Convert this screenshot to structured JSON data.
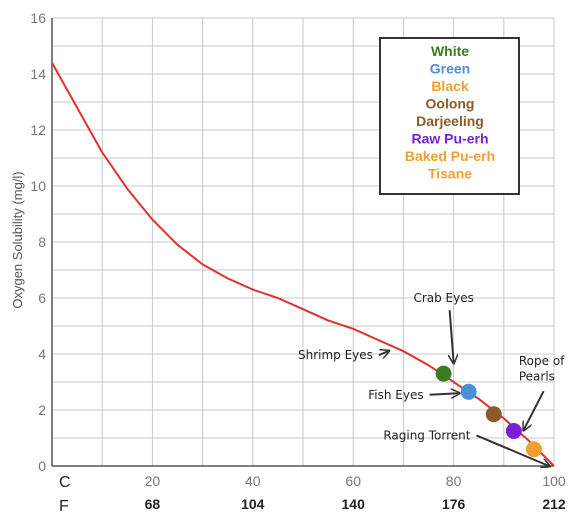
{
  "chart_data": {
    "type": "line",
    "ylabel": "Oxygen Solubility (mg/l)",
    "ylim": [
      0,
      16
    ],
    "xlim": [
      0,
      100
    ],
    "y_ticks": [
      0,
      2,
      4,
      6,
      8,
      10,
      12,
      14,
      16
    ],
    "x_ticks": [
      20,
      40,
      60,
      80,
      100
    ],
    "x_scale_label_c": "C",
    "x_scale_label_f": "F",
    "x_ticks_f": [
      {
        "c": 20,
        "label": "68"
      },
      {
        "c": 40,
        "label": "104"
      },
      {
        "c": 60,
        "label": "140"
      },
      {
        "c": 80,
        "label": "176"
      },
      {
        "c": 100,
        "label": "212"
      }
    ],
    "series": [
      {
        "color": "#e03030",
        "x": [
          0,
          5,
          10,
          15,
          20,
          25,
          30,
          35,
          40,
          45,
          50,
          55,
          60,
          65,
          70,
          75,
          80,
          85,
          90,
          95,
          100
        ],
        "y": [
          14.4,
          12.8,
          11.2,
          9.9,
          8.8,
          7.9,
          7.2,
          6.7,
          6.3,
          6.0,
          5.6,
          5.2,
          4.9,
          4.5,
          4.1,
          3.6,
          3.0,
          2.4,
          1.7,
          0.9,
          0.0
        ]
      }
    ],
    "points": [
      {
        "name": "White",
        "color": "#3a7d1e",
        "x": 78,
        "y": 3.3
      },
      {
        "name": "Green",
        "color": "#4a90d9",
        "x": 83,
        "y": 2.65
      },
      {
        "name": "Oolong",
        "color": "#8b5a2b",
        "x": 88,
        "y": 1.85
      },
      {
        "name": "Raw Pu-erh",
        "color": "#7a1fd6",
        "x": 92,
        "y": 1.25
      },
      {
        "name": "Baked Pu-erh",
        "color": "#f0a030",
        "x": 96,
        "y": 0.6
      }
    ],
    "annotations": [
      {
        "label": "Crab Eyes",
        "tx": 72,
        "ty": 5.85,
        "ax": 80,
        "ay": 3.7
      },
      {
        "label": "Shrimp Eyes",
        "tx": 49,
        "ty": 3.82,
        "ax": 67,
        "ay": 4.1
      },
      {
        "label": "Fish Eyes",
        "tx": 63,
        "ty": 2.4,
        "ax": 81,
        "ay": 2.6
      },
      {
        "label": "Rope of",
        "tx": 93,
        "ty": 3.6,
        "ax": 94,
        "ay": 1.3
      },
      {
        "label": "Pearls",
        "tx": 93,
        "ty": 3.05,
        "ax": null,
        "ay": null
      },
      {
        "label": "Raging Torrent",
        "tx": 66,
        "ty": 0.95,
        "ax": 99,
        "ay": 0.0
      }
    ],
    "legend": {
      "position": "top-right",
      "entries": [
        {
          "label": "White",
          "color": "#3a7d1e"
        },
        {
          "label": "Green",
          "color": "#4a90d9"
        },
        {
          "label": "Black",
          "color": "#f0a030"
        },
        {
          "label": "Oolong",
          "color": "#8b5a2b"
        },
        {
          "label": "Darjeeling",
          "color": "#8b5a2b"
        },
        {
          "label": "Raw Pu-erh",
          "color": "#7a1fd6"
        },
        {
          "label": "Baked Pu-erh",
          "color": "#f0a030"
        },
        {
          "label": "Tisane",
          "color": "#f0a030"
        }
      ]
    },
    "grid": true
  }
}
